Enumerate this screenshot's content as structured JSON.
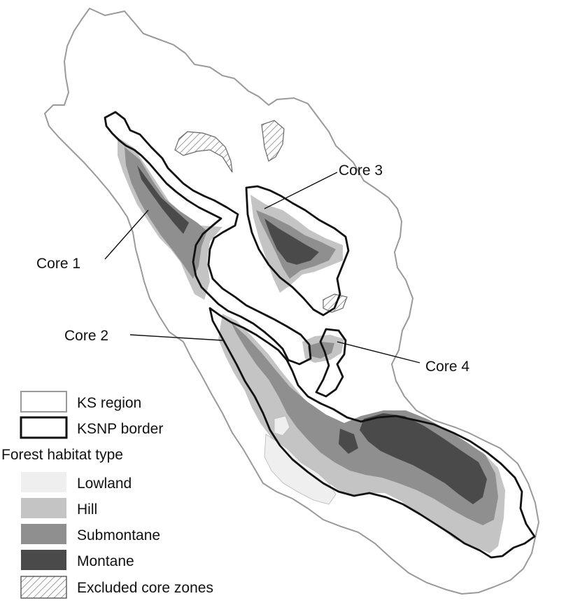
{
  "map": {
    "core_labels": {
      "core1": "Core 1",
      "core2": "Core 2",
      "core3": "Core 3",
      "core4": "Core 4"
    },
    "legend": {
      "ks_region": "KS region",
      "ksnp_border": "KSNP border",
      "heading": "Forest habitat type",
      "lowland": "Lowland",
      "hill": "Hill",
      "submontane": "Submontane",
      "montane": "Montane",
      "excluded": "Excluded core zones"
    },
    "colors": {
      "ks_region_outline": "#9a9a9a",
      "ksnp_border": "#111111",
      "lowland": "#efefef",
      "hill": "#c4c4c4",
      "submontane": "#8f8f8f",
      "montane": "#4a4a4a"
    }
  }
}
